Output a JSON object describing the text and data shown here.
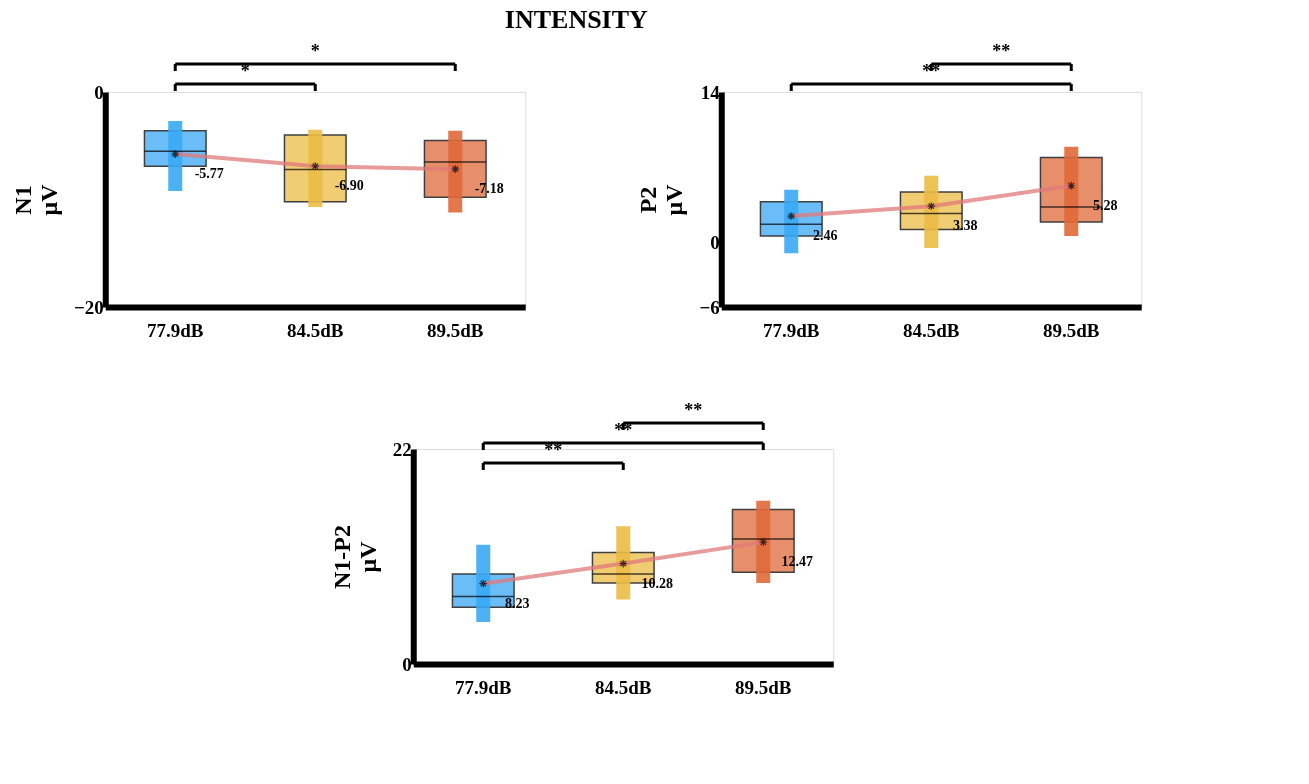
{
  "chart_data": [
    {
      "type": "box",
      "title": "INTENSITY",
      "ylabel": "N1\nμV",
      "categories": [
        "77.9dB",
        "84.5dB",
        "89.5dB"
      ],
      "colors": [
        "#3aa8f5",
        "#ebbb45",
        "#e0693a"
      ],
      "ylim": [
        -20,
        0
      ],
      "yticks": [
        -20,
        0
      ],
      "grid": false,
      "legend": false,
      "boxes": [
        {
          "low": -9.2,
          "q1": -6.9,
          "median": -5.5,
          "q3": -3.6,
          "high": -2.7
        },
        {
          "low": -10.7,
          "q1": -10.2,
          "median": -7.2,
          "q3": -4.0,
          "high": -3.5
        },
        {
          "low": -11.2,
          "q1": -9.8,
          "median": -6.5,
          "q3": -4.5,
          "high": -3.6
        }
      ],
      "series": [
        {
          "type": "line",
          "color": "#e07a7a",
          "marker": "cross",
          "line_style": "solid",
          "values": [
            -5.77,
            -6.9,
            -7.18
          ],
          "value_labels": [
            "-5.77",
            "-6.90",
            "-7.18"
          ]
        }
      ],
      "annotations": [
        "*",
        "*"
      ]
    },
    {
      "type": "box",
      "ylabel": "P2\nμV",
      "categories": [
        "77.9dB",
        "84.5dB",
        "89.5dB"
      ],
      "colors": [
        "#3aa8f5",
        "#ebbb45",
        "#e0693a"
      ],
      "ylim": [
        -6,
        14
      ],
      "yticks": [
        -6,
        0,
        14
      ],
      "grid": false,
      "legend": false,
      "boxes": [
        {
          "low": -1.0,
          "q1": 0.6,
          "median": 1.7,
          "q3": 3.8,
          "high": 4.9
        },
        {
          "low": -0.5,
          "q1": 1.2,
          "median": 2.7,
          "q3": 4.7,
          "high": 6.2
        },
        {
          "low": 0.6,
          "q1": 1.9,
          "median": 3.3,
          "q3": 7.9,
          "high": 8.9
        }
      ],
      "series": [
        {
          "type": "line",
          "color": "#e07a7a",
          "marker": "cross",
          "line_style": "solid",
          "values": [
            2.46,
            3.38,
            5.28
          ],
          "value_labels": [
            "2.46",
            "3.38",
            "5.28"
          ]
        }
      ],
      "annotations": [
        "**",
        "**"
      ]
    },
    {
      "type": "box",
      "ylabel": "N1-P2\nμV",
      "categories": [
        "77.9dB",
        "84.5dB",
        "89.5dB"
      ],
      "colors": [
        "#3aa8f5",
        "#ebbb45",
        "#e0693a"
      ],
      "ylim": [
        0,
        22
      ],
      "yticks": [
        0,
        22
      ],
      "grid": false,
      "legend": false,
      "boxes": [
        {
          "low": 4.3,
          "q1": 5.8,
          "median": 6.9,
          "q3": 9.2,
          "high": 12.2
        },
        {
          "low": 6.6,
          "q1": 8.3,
          "median": 9.2,
          "q3": 11.4,
          "high": 14.1
        },
        {
          "low": 8.3,
          "q1": 9.4,
          "median": 12.8,
          "q3": 15.8,
          "high": 16.7
        }
      ],
      "series": [
        {
          "type": "line",
          "color": "#e07a7a",
          "marker": "cross",
          "line_style": "solid",
          "values": [
            8.23,
            10.28,
            12.47
          ],
          "value_labels": [
            "8.23",
            "10.28",
            "12.47"
          ]
        }
      ],
      "annotations": [
        "**",
        "**",
        "**"
      ]
    }
  ]
}
